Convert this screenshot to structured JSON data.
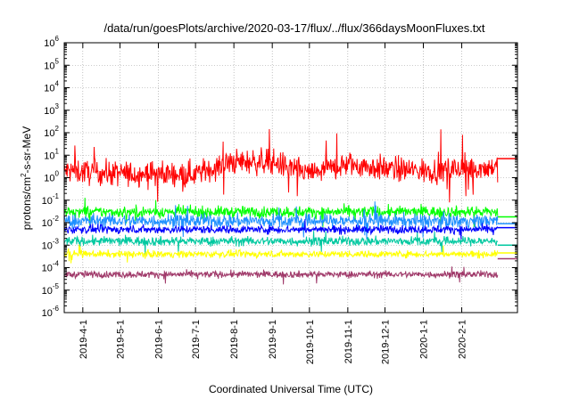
{
  "chart_data": {
    "type": "line",
    "title": "/data/run/goesPlots/archive/2020-03-17/flux/../flux/366daysMoonFluxes.txt",
    "xlabel": "Coordinated Universal Time (UTC)",
    "ylabel": "protons/cm²-s-sr-MeV",
    "ylabel_parts": {
      "base": "protons/cm",
      "sup": "2",
      "rest": "-s-sr-MeV"
    },
    "yscale": "log",
    "ylim": [
      1e-06,
      1000000.0
    ],
    "xlim": [
      "2019-03-17",
      "2020-03-17"
    ],
    "grid": true,
    "legend": "none",
    "y_ticks": [
      {
        "base": "10",
        "exp": "-6"
      },
      {
        "base": "10",
        "exp": "-5"
      },
      {
        "base": "10",
        "exp": "-4"
      },
      {
        "base": "10",
        "exp": "-3"
      },
      {
        "base": "10",
        "exp": "-2"
      },
      {
        "base": "10",
        "exp": "-1"
      },
      {
        "base": "10",
        "exp": "0"
      },
      {
        "base": "10",
        "exp": "1"
      },
      {
        "base": "10",
        "exp": "2"
      },
      {
        "base": "10",
        "exp": "3"
      },
      {
        "base": "10",
        "exp": "4"
      },
      {
        "base": "10",
        "exp": "5"
      },
      {
        "base": "10",
        "exp": "6"
      }
    ],
    "x_ticks": [
      "2019-4-1",
      "2019-5-1",
      "2019-6-1",
      "2019-7-1",
      "2019-8-1",
      "2019-9-1",
      "2019-10-1",
      "2019-11-1",
      "2019-12-1",
      "2020-1-1",
      "2020-2-1"
    ],
    "x_tick_dates": [
      "2019-04-01",
      "2019-05-01",
      "2019-06-01",
      "2019-07-01",
      "2019-08-01",
      "2019-09-01",
      "2019-10-01",
      "2019-11-01",
      "2019-12-01",
      "2020-01-01",
      "2020-02-01"
    ],
    "data_end": "2020-03-01",
    "series": [
      {
        "color": "#ff0000",
        "median": 2.0,
        "spread_decades": 0.55,
        "last_value": 7.0,
        "x": [
          "2019-03-17",
          "2019-05-01",
          "2019-07-01",
          "2019-08-01",
          "2019-09-01",
          "2019-10-01",
          "2019-11-01",
          "2019-12-01",
          "2020-01-01",
          "2020-03-01"
        ],
        "y": [
          2.0,
          1.5,
          1.5,
          5.0,
          5.0,
          1.5,
          4.0,
          2.5,
          2.0,
          3.0
        ]
      },
      {
        "color": "#00ff00",
        "median": 0.03,
        "spread_decades": 0.25,
        "last_value": 0.018
      },
      {
        "color": "#1e90ff",
        "median": 0.012,
        "spread_decades": 0.3,
        "last_value": 0.009
      },
      {
        "color": "#0000ff",
        "median": 0.005,
        "spread_decades": 0.18,
        "last_value": 0.006
      },
      {
        "color": "#00c8a0",
        "median": 0.0015,
        "spread_decades": 0.2,
        "last_value": 0.001
      },
      {
        "color": "#ffff00",
        "median": 0.0004,
        "spread_decades": 0.15,
        "last_value": 0.00045
      },
      {
        "color": "#a03a6a",
        "median": 5e-05,
        "spread_decades": 0.15,
        "last_value": 0.00025
      }
    ]
  }
}
